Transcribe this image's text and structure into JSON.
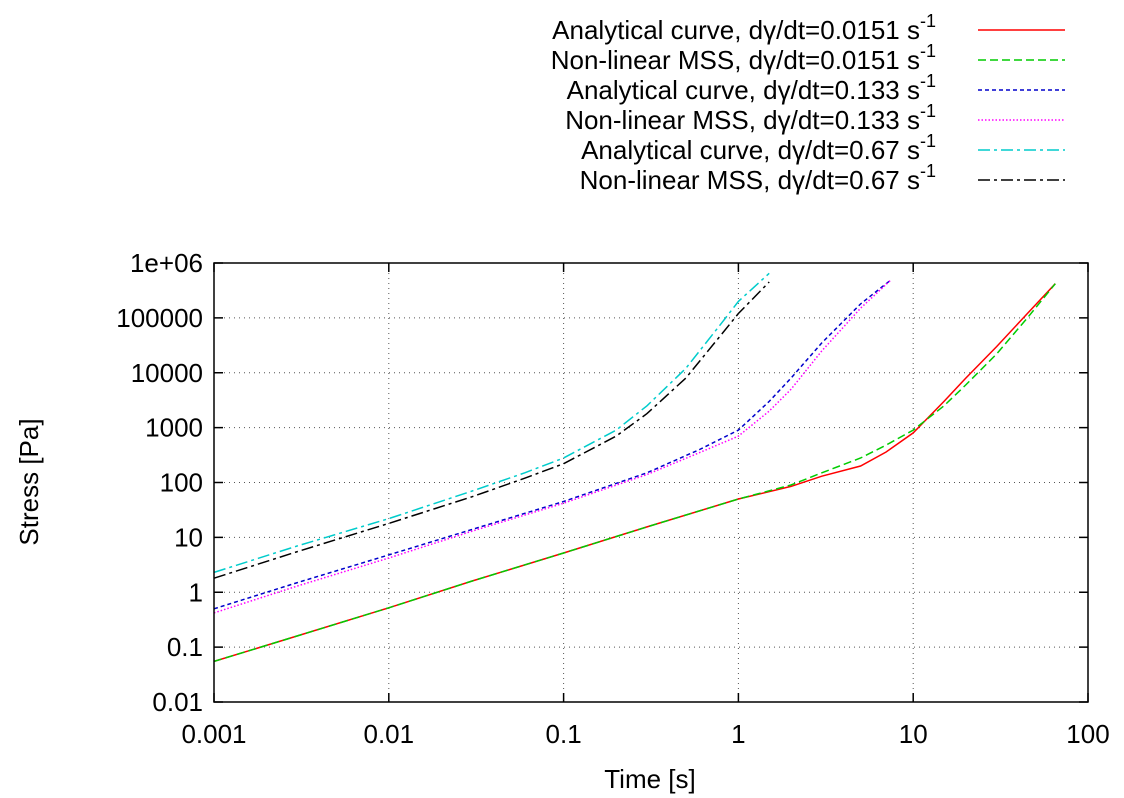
{
  "chart_data": {
    "type": "line",
    "title": "",
    "xlabel": "Time [s]",
    "ylabel": "Stress [Pa]",
    "xscale": "log",
    "yscale": "log",
    "xlim": [
      0.001,
      100
    ],
    "ylim": [
      0.01,
      1000000
    ],
    "xticks": [
      {
        "value": 0.001,
        "label": "0.001"
      },
      {
        "value": 0.01,
        "label": "0.01"
      },
      {
        "value": 0.1,
        "label": "0.1"
      },
      {
        "value": 1,
        "label": "1"
      },
      {
        "value": 10,
        "label": "10"
      },
      {
        "value": 100,
        "label": "100"
      }
    ],
    "yticks": [
      {
        "value": 0.01,
        "label": "0.01"
      },
      {
        "value": 0.1,
        "label": "0.1"
      },
      {
        "value": 1,
        "label": "1"
      },
      {
        "value": 10,
        "label": "10"
      },
      {
        "value": 100,
        "label": "100"
      },
      {
        "value": 1000,
        "label": "1000"
      },
      {
        "value": 10000,
        "label": "10000"
      },
      {
        "value": 100000,
        "label": "100000"
      },
      {
        "value": 1000000,
        "label": "1e+06"
      }
    ],
    "grid": true,
    "legend_position": "top-right, above plot",
    "series": [
      {
        "name": "Analytical curve, dγ/dt=0.0151 s",
        "name_superscript": "-1",
        "color": "#ff0000",
        "dash": "solid",
        "x": [
          0.001,
          0.003,
          0.01,
          0.03,
          0.1,
          0.3,
          1,
          2,
          3,
          5,
          7,
          10,
          15,
          20,
          30,
          45,
          65
        ],
        "y": [
          0.055,
          0.16,
          0.52,
          1.6,
          5.2,
          15.5,
          50,
          85,
          130,
          200,
          360,
          800,
          3000,
          8000,
          30000,
          120000,
          420000
        ]
      },
      {
        "name": "Non-linear MSS, dγ/dt=0.0151 s",
        "name_superscript": "-1",
        "color": "#00cc00",
        "dash": "dashed",
        "x": [
          0.001,
          0.003,
          0.01,
          0.03,
          0.1,
          0.3,
          1,
          2,
          3,
          5,
          7,
          10,
          15,
          20,
          30,
          45,
          65
        ],
        "y": [
          0.055,
          0.16,
          0.52,
          1.6,
          5.2,
          15.5,
          50,
          90,
          150,
          280,
          480,
          900,
          2500,
          6000,
          22000,
          100000,
          420000
        ]
      },
      {
        "name": "Analytical curve, dγ/dt=0.133 s",
        "name_superscript": "-1",
        "color": "#0000cc",
        "dash": "short-dash",
        "x": [
          0.001,
          0.003,
          0.01,
          0.03,
          0.1,
          0.3,
          0.6,
          1,
          1.5,
          2,
          3,
          5,
          7.5
        ],
        "y": [
          0.5,
          1.5,
          4.8,
          14,
          45,
          150,
          400,
          900,
          3000,
          8000,
          35000,
          180000,
          500000
        ]
      },
      {
        "name": "Non-linear MSS, dγ/dt=0.133 s",
        "name_superscript": "-1",
        "color": "#ff00ff",
        "dash": "dotted",
        "x": [
          0.001,
          0.003,
          0.01,
          0.03,
          0.1,
          0.3,
          0.6,
          1,
          1.5,
          2,
          3,
          5,
          7.5
        ],
        "y": [
          0.42,
          1.3,
          4.2,
          13,
          42,
          140,
          350,
          700,
          2000,
          5000,
          25000,
          150000,
          500000
        ]
      },
      {
        "name": "Analytical curve, dγ/dt=0.67 s",
        "name_superscript": "-1",
        "color": "#00cccc",
        "dash": "dash-dot",
        "x": [
          0.001,
          0.003,
          0.01,
          0.03,
          0.06,
          0.1,
          0.2,
          0.3,
          0.5,
          0.8,
          1,
          1.5
        ],
        "y": [
          2.3,
          7,
          22,
          70,
          150,
          280,
          900,
          2500,
          12000,
          80000,
          200000,
          650000
        ]
      },
      {
        "name": "Non-linear MSS, dγ/dt=0.67 s",
        "name_superscript": "-1",
        "color": "#000000",
        "dash": "dash-dot",
        "x": [
          0.001,
          0.003,
          0.01,
          0.03,
          0.06,
          0.1,
          0.2,
          0.3,
          0.5,
          0.8,
          1,
          1.5
        ],
        "y": [
          1.8,
          5.5,
          18,
          55,
          120,
          220,
          700,
          1800,
          8000,
          50000,
          120000,
          450000
        ]
      }
    ]
  }
}
